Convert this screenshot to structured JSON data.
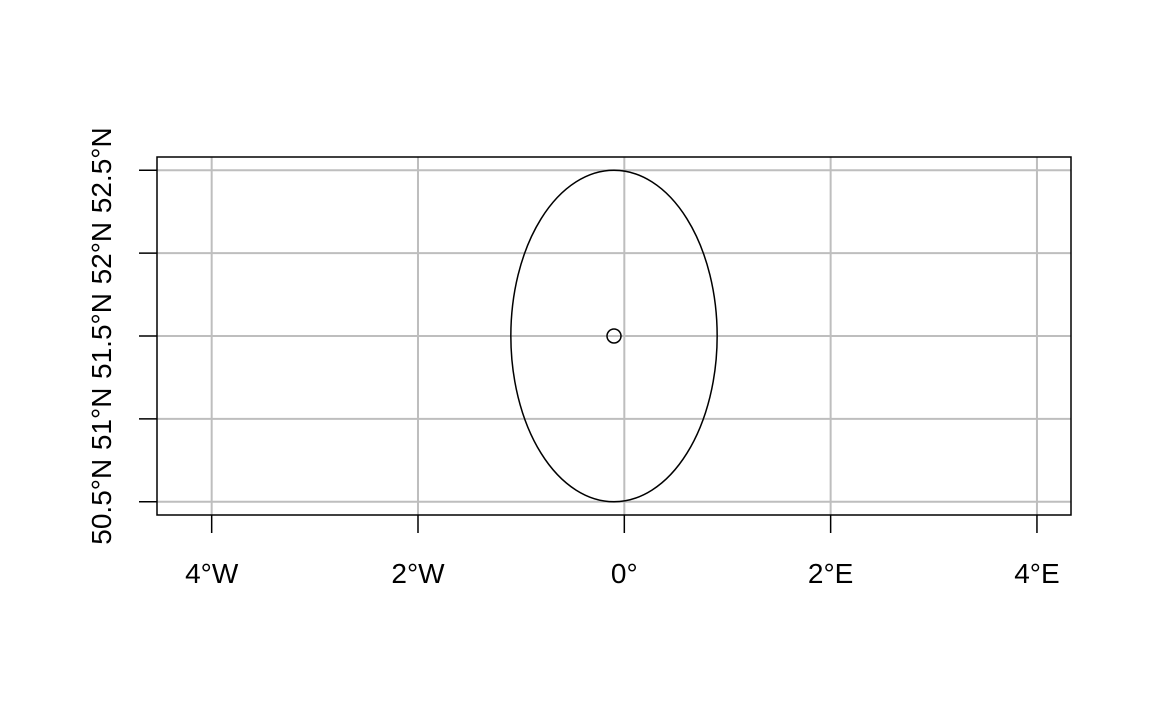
{
  "chart_data": {
    "type": "scatter",
    "title": "",
    "xlabel": "",
    "ylabel": "",
    "xlim": [
      -4.53,
      4.33
    ],
    "ylim": [
      50.42,
      52.58
    ],
    "grid": true,
    "x_ticks": [
      {
        "value": -4,
        "label": "4°W"
      },
      {
        "value": -2,
        "label": "2°W"
      },
      {
        "value": 0,
        "label": "0°"
      },
      {
        "value": 2,
        "label": "2°E"
      },
      {
        "value": 4,
        "label": "4°E"
      }
    ],
    "y_ticks": [
      {
        "value": 50.5,
        "label": "50.5°N"
      },
      {
        "value": 51,
        "label": "51°N"
      },
      {
        "value": 51.5,
        "label": "51.5°N"
      },
      {
        "value": 52,
        "label": "52°N"
      },
      {
        "value": 52.5,
        "label": "52.5°N"
      }
    ],
    "points": [
      {
        "x": -0.1,
        "y": 51.5
      }
    ],
    "ellipse": {
      "center_x": -0.1,
      "center_y": 51.5,
      "x_radius": 1.0,
      "y_radius": 1.0
    }
  }
}
